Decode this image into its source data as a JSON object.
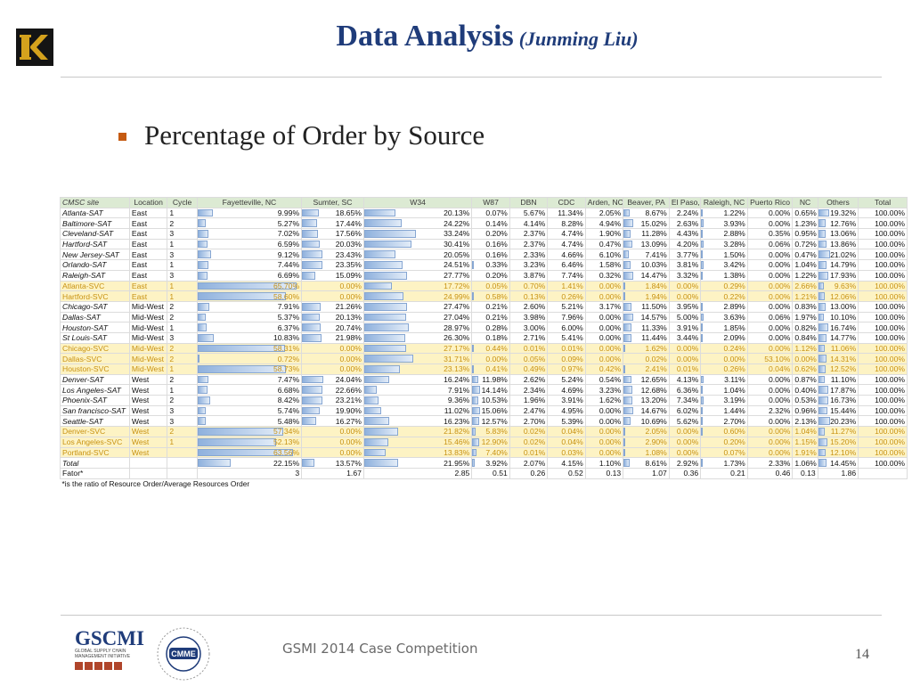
{
  "slide": {
    "title": "Data Analysis",
    "subtitle": "(Junming Liu)",
    "bullet": "Percentage of Order by Source",
    "footer": "GSMI 2014 Case Competition",
    "page_number": "14",
    "logo_letter": "K",
    "gscmi_logo_text": "GSCMI",
    "gscmi_logo_subtitle": "GLOBAL SUPPLY CHAIN MANAGEMENT INITIATIVE",
    "cmme_logo_text": "CMME"
  },
  "table": {
    "headers": [
      "CMSC site",
      "Location",
      "Cycle",
      "Fayetteville, NC",
      "Sumter, SC",
      "W34",
      "W87",
      "DBN",
      "CDC",
      "Arden, NC",
      "Beaver, PA",
      "El Paso, TX",
      "Raleigh, NC",
      "Puerto Rico",
      "NC",
      "Others",
      "Total"
    ],
    "rows": [
      {
        "site": "Atlanta-SAT",
        "loc": "East",
        "cycle": "1",
        "svc": false,
        "vals": [
          "9.99%",
          "18.65%",
          "20.13%",
          "0.07%",
          "5.67%",
          "11.34%",
          "2.05%",
          "8.67%",
          "2.24%",
          "1.22%",
          "0.00%",
          "0.65%",
          "19.32%",
          "100.00%"
        ]
      },
      {
        "site": "Baltimore-SAT",
        "loc": "East",
        "cycle": "2",
        "svc": false,
        "vals": [
          "5.27%",
          "17.44%",
          "24.22%",
          "0.14%",
          "4.14%",
          "8.28%",
          "4.94%",
          "15.02%",
          "2.63%",
          "3.93%",
          "0.00%",
          "1.23%",
          "12.76%",
          "100.00%"
        ]
      },
      {
        "site": "Cleveland-SAT",
        "loc": "East",
        "cycle": "3",
        "svc": false,
        "vals": [
          "7.02%",
          "17.56%",
          "33.24%",
          "0.20%",
          "2.37%",
          "4.74%",
          "1.90%",
          "11.28%",
          "4.43%",
          "2.88%",
          "0.35%",
          "0.95%",
          "13.06%",
          "100.00%"
        ]
      },
      {
        "site": "Hartford-SAT",
        "loc": "East",
        "cycle": "1",
        "svc": false,
        "vals": [
          "6.59%",
          "20.03%",
          "30.41%",
          "0.16%",
          "2.37%",
          "4.74%",
          "0.47%",
          "13.09%",
          "4.20%",
          "3.28%",
          "0.06%",
          "0.72%",
          "13.86%",
          "100.00%"
        ]
      },
      {
        "site": "New Jersey-SAT",
        "loc": "East",
        "cycle": "3",
        "svc": false,
        "vals": [
          "9.12%",
          "23.43%",
          "20.05%",
          "0.16%",
          "2.33%",
          "4.66%",
          "6.10%",
          "7.41%",
          "3.77%",
          "1.50%",
          "0.00%",
          "0.47%",
          "21.02%",
          "100.00%"
        ]
      },
      {
        "site": "Orlando-SAT",
        "loc": "East",
        "cycle": "1",
        "svc": false,
        "vals": [
          "7.44%",
          "23.35%",
          "24.51%",
          "0.33%",
          "3.23%",
          "6.46%",
          "1.58%",
          "10.03%",
          "3.81%",
          "3.42%",
          "0.00%",
          "1.04%",
          "14.79%",
          "100.00%"
        ]
      },
      {
        "site": "Raleigh-SAT",
        "loc": "East",
        "cycle": "3",
        "svc": false,
        "vals": [
          "6.69%",
          "15.09%",
          "27.77%",
          "0.20%",
          "3.87%",
          "7.74%",
          "0.32%",
          "14.47%",
          "3.32%",
          "1.38%",
          "0.00%",
          "1.22%",
          "17.93%",
          "100.00%"
        ]
      },
      {
        "site": "Atlanta-SVC",
        "loc": "East",
        "cycle": "1",
        "svc": true,
        "vals": [
          "65.70%",
          "0.00%",
          "17.72%",
          "0.05%",
          "0.70%",
          "1.41%",
          "0.00%",
          "1.84%",
          "0.00%",
          "0.29%",
          "0.00%",
          "2.66%",
          "9.63%",
          "100.00%"
        ]
      },
      {
        "site": "Hartford-SVC",
        "loc": "East",
        "cycle": "1",
        "svc": true,
        "vals": [
          "58.60%",
          "0.00%",
          "24.99%",
          "0.58%",
          "0.13%",
          "0.26%",
          "0.00%",
          "1.94%",
          "0.00%",
          "0.22%",
          "0.00%",
          "1.21%",
          "12.06%",
          "100.00%"
        ]
      },
      {
        "site": "Chicago-SAT",
        "loc": "Mid-West",
        "cycle": "2",
        "svc": false,
        "vals": [
          "7.91%",
          "21.26%",
          "27.47%",
          "0.21%",
          "2.60%",
          "5.21%",
          "3.17%",
          "11.50%",
          "3.95%",
          "2.89%",
          "0.00%",
          "0.83%",
          "13.00%",
          "100.00%"
        ]
      },
      {
        "site": "Dallas-SAT",
        "loc": "Mid-West",
        "cycle": "2",
        "svc": false,
        "vals": [
          "5.37%",
          "20.13%",
          "27.04%",
          "0.21%",
          "3.98%",
          "7.96%",
          "0.00%",
          "14.57%",
          "5.00%",
          "3.63%",
          "0.06%",
          "1.97%",
          "10.10%",
          "100.00%"
        ]
      },
      {
        "site": "Houston-SAT",
        "loc": "Mid-West",
        "cycle": "1",
        "svc": false,
        "vals": [
          "6.37%",
          "20.74%",
          "28.97%",
          "0.28%",
          "3.00%",
          "6.00%",
          "0.00%",
          "11.33%",
          "3.91%",
          "1.85%",
          "0.00%",
          "0.82%",
          "16.74%",
          "100.00%"
        ]
      },
      {
        "site": "St Louis-SAT",
        "loc": "Mid-West",
        "cycle": "3",
        "svc": false,
        "vals": [
          "10.83%",
          "21.98%",
          "26.30%",
          "0.18%",
          "2.71%",
          "5.41%",
          "0.00%",
          "11.44%",
          "3.44%",
          "2.09%",
          "0.00%",
          "0.84%",
          "14.77%",
          "100.00%"
        ]
      },
      {
        "site": "Chicago-SVC",
        "loc": "Mid-West",
        "cycle": "2",
        "svc": true,
        "vals": [
          "58.31%",
          "0.00%",
          "27.17%",
          "0.44%",
          "0.01%",
          "0.01%",
          "0.00%",
          "1.62%",
          "0.00%",
          "0.24%",
          "0.00%",
          "1.12%",
          "11.06%",
          "100.00%"
        ]
      },
      {
        "site": "Dallas-SVC",
        "loc": "Mid-West",
        "cycle": "2",
        "svc": true,
        "vals": [
          "0.72%",
          "0.00%",
          "31.71%",
          "0.00%",
          "0.05%",
          "0.09%",
          "0.00%",
          "0.02%",
          "0.00%",
          "0.00%",
          "53.10%",
          "0.00%",
          "14.31%",
          "100.00%"
        ]
      },
      {
        "site": "Houston-SVC",
        "loc": "Mid-West",
        "cycle": "1",
        "svc": true,
        "vals": [
          "58.73%",
          "0.00%",
          "23.13%",
          "0.41%",
          "0.49%",
          "0.97%",
          "0.42%",
          "2.41%",
          "0.01%",
          "0.26%",
          "0.04%",
          "0.62%",
          "12.52%",
          "100.00%"
        ]
      },
      {
        "site": "Denver-SAT",
        "loc": "West",
        "cycle": "2",
        "svc": false,
        "vals": [
          "7.47%",
          "24.04%",
          "16.24%",
          "11.98%",
          "2.62%",
          "5.24%",
          "0.54%",
          "12.65%",
          "4.13%",
          "3.11%",
          "0.00%",
          "0.87%",
          "11.10%",
          "100.00%"
        ]
      },
      {
        "site": "Los Angeles-SAT",
        "loc": "West",
        "cycle": "1",
        "svc": false,
        "vals": [
          "6.68%",
          "22.66%",
          "7.91%",
          "14.14%",
          "2.34%",
          "4.69%",
          "3.23%",
          "12.68%",
          "6.36%",
          "1.04%",
          "0.00%",
          "0.40%",
          "17.87%",
          "100.00%"
        ]
      },
      {
        "site": "Phoenix-SAT",
        "loc": "West",
        "cycle": "2",
        "svc": false,
        "vals": [
          "8.42%",
          "23.21%",
          "9.36%",
          "10.53%",
          "1.96%",
          "3.91%",
          "1.62%",
          "13.20%",
          "7.34%",
          "3.19%",
          "0.00%",
          "0.53%",
          "16.73%",
          "100.00%"
        ]
      },
      {
        "site": "San francisco-SAT",
        "loc": "West",
        "cycle": "3",
        "svc": false,
        "vals": [
          "5.74%",
          "19.90%",
          "11.02%",
          "15.06%",
          "2.47%",
          "4.95%",
          "0.00%",
          "14.67%",
          "6.02%",
          "1.44%",
          "2.32%",
          "0.96%",
          "15.44%",
          "100.00%"
        ]
      },
      {
        "site": "Seattle-SAT",
        "loc": "West",
        "cycle": "3",
        "svc": false,
        "vals": [
          "5.48%",
          "16.27%",
          "16.23%",
          "12.57%",
          "2.70%",
          "5.39%",
          "0.00%",
          "10.69%",
          "5.62%",
          "2.70%",
          "0.00%",
          "2.13%",
          "20.23%",
          "100.00%"
        ]
      },
      {
        "site": "Denver-SVC",
        "loc": "West",
        "cycle": "2",
        "svc": true,
        "vals": [
          "57.34%",
          "0.00%",
          "21.82%",
          "5.83%",
          "0.02%",
          "0.04%",
          "0.00%",
          "2.05%",
          "0.00%",
          "0.60%",
          "0.00%",
          "1.04%",
          "11.27%",
          "100.00%"
        ]
      },
      {
        "site": "Los Angeles-SVC",
        "loc": "West",
        "cycle": "1",
        "svc": true,
        "vals": [
          "52.13%",
          "0.00%",
          "15.46%",
          "12.90%",
          "0.02%",
          "0.04%",
          "0.00%",
          "2.90%",
          "0.00%",
          "0.20%",
          "0.00%",
          "1.15%",
          "15.20%",
          "100.00%"
        ]
      },
      {
        "site": "Portland-SVC",
        "loc": "West",
        "cycle": "",
        "svc": true,
        "vals": [
          "63.56%",
          "0.00%",
          "13.83%",
          "7.40%",
          "0.01%",
          "0.03%",
          "0.00%",
          "1.08%",
          "0.00%",
          "0.07%",
          "0.00%",
          "1.91%",
          "12.10%",
          "100.00%"
        ]
      },
      {
        "site": "Total",
        "loc": "",
        "cycle": "",
        "svc": false,
        "vals": [
          "22.15%",
          "13.57%",
          "21.95%",
          "3.92%",
          "2.07%",
          "4.15%",
          "1.10%",
          "8.61%",
          "2.92%",
          "1.73%",
          "2.33%",
          "1.06%",
          "14.45%",
          "100.00%"
        ]
      }
    ],
    "fator": {
      "label": "Fator*",
      "vals": [
        "3",
        "1.67",
        "2.85",
        "0.51",
        "0.26",
        "0.52",
        "0.13",
        "1.07",
        "0.36",
        "0.21",
        "0.46",
        "0.13",
        "1.86",
        ""
      ]
    },
    "footnote": "*is the ratio of Resource Order/Average Resources Order"
  }
}
